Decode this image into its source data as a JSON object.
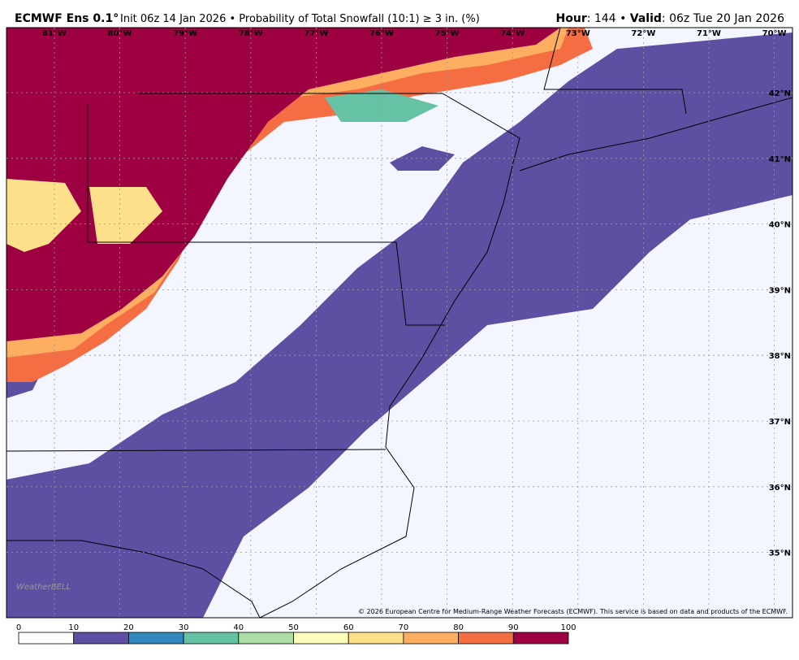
{
  "header": {
    "model": "ECMWF Ens 0.1°",
    "init": "Init 06z 14 Jan 2026 • Probability of Total Snowfall (10:1) ≥ 3 in. (%)",
    "hour_label": "Hour",
    "hour_value": ": 144 • ",
    "valid_label": "Valid",
    "valid_value": ": 06z Tue 20 Jan 2026"
  },
  "map": {
    "longitudes": [
      "81°W",
      "80°W",
      "79°W",
      "78°W",
      "77°W",
      "76°W",
      "75°W",
      "74°W",
      "73°W",
      "72°W",
      "71°W",
      "70°W"
    ],
    "latitudes": [
      "42°N",
      "41°N",
      "40°N",
      "39°N",
      "38°N",
      "37°N",
      "36°N",
      "35°N"
    ],
    "copyright": "© 2026 European Centre for Medium-Range Weather Forecasts (ECMWF). This service is based on data and products of the ECMWF.",
    "watermark": "WeatherBELL"
  },
  "colorbar": {
    "ticks": [
      0,
      10,
      20,
      30,
      40,
      50,
      60,
      70,
      80,
      90,
      100
    ],
    "colors": [
      "#ffffff",
      "#5e4fa2",
      "#3288bd",
      "#66c2a5",
      "#abdda4",
      "#fefebd",
      "#fee08b",
      "#fdae61",
      "#f46d43",
      "#9e0142"
    ]
  }
}
